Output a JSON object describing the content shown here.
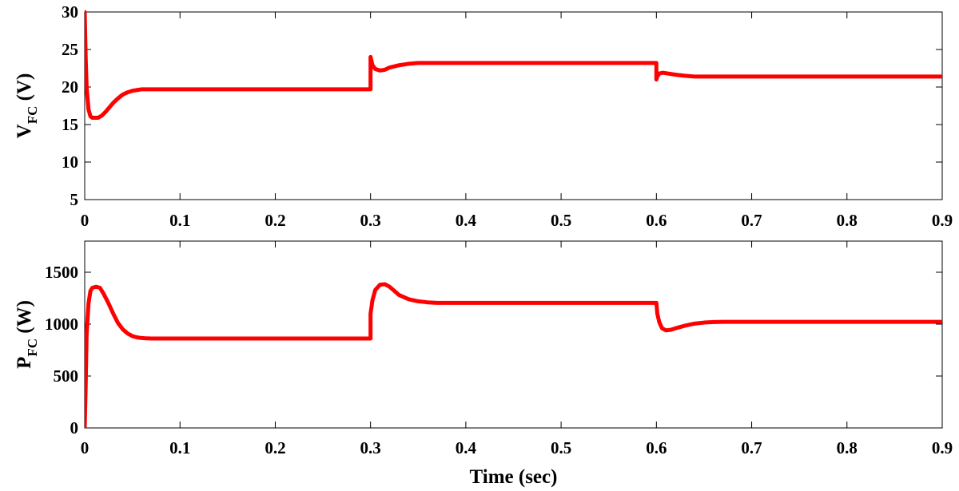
{
  "chart_data": [
    {
      "type": "line",
      "ylabel_main": "V",
      "ylabel_sub": "FC",
      "ylabel_unit": " (V)",
      "xlabel": "",
      "xlim": [
        0,
        0.9
      ],
      "ylim": [
        5,
        30
      ],
      "xticks": [
        0,
        0.1,
        0.2,
        0.3,
        0.4,
        0.5,
        0.6,
        0.7,
        0.8,
        0.9
      ],
      "xtick_labels": [
        "0",
        "0.1",
        "0.2",
        "0.3",
        "0.4",
        "0.5",
        "0.6",
        "0.7",
        "0.8",
        "0.9"
      ],
      "yticks": [
        5,
        10,
        15,
        20,
        25,
        30
      ],
      "ytick_labels": [
        "5",
        "10",
        "15",
        "20",
        "25",
        "30"
      ],
      "grid": false,
      "color": "#ff0000",
      "series": [
        {
          "x": [
            0,
            0.001,
            0.002,
            0.004,
            0.006,
            0.008,
            0.01,
            0.014,
            0.018,
            0.022,
            0.026,
            0.03,
            0.035,
            0.04,
            0.045,
            0.05,
            0.055,
            0.06,
            0.07,
            0.08,
            0.1,
            0.15,
            0.2,
            0.25,
            0.3,
            0.3,
            0.301,
            0.302,
            0.305,
            0.31,
            0.315,
            0.32,
            0.33,
            0.34,
            0.35,
            0.36,
            0.38,
            0.4,
            0.45,
            0.5,
            0.55,
            0.6,
            0.6,
            0.601,
            0.603,
            0.607,
            0.612,
            0.617,
            0.623,
            0.63,
            0.64,
            0.65,
            0.66,
            0.68,
            0.7,
            0.75,
            0.8,
            0.85,
            0.9
          ],
          "y": [
            30,
            24,
            20,
            17,
            16.1,
            15.9,
            15.9,
            15.9,
            16.2,
            16.7,
            17.3,
            17.9,
            18.5,
            19.0,
            19.3,
            19.5,
            19.6,
            19.7,
            19.7,
            19.7,
            19.7,
            19.7,
            19.7,
            19.7,
            19.7,
            24.0,
            23.5,
            22.9,
            22.4,
            22.2,
            22.3,
            22.6,
            22.9,
            23.1,
            23.2,
            23.2,
            23.2,
            23.2,
            23.2,
            23.2,
            23.2,
            23.2,
            21.0,
            21.4,
            21.8,
            21.9,
            21.8,
            21.7,
            21.6,
            21.5,
            21.4,
            21.4,
            21.4,
            21.4,
            21.4,
            21.4,
            21.4,
            21.4,
            21.4
          ]
        }
      ]
    },
    {
      "type": "line",
      "ylabel_main": "P",
      "ylabel_sub": "FC",
      "ylabel_unit": " (W)",
      "xlabel": "Time (sec)",
      "xlim": [
        0,
        0.9
      ],
      "ylim": [
        0,
        1800
      ],
      "xticks": [
        0,
        0.1,
        0.2,
        0.3,
        0.4,
        0.5,
        0.6,
        0.7,
        0.8,
        0.9
      ],
      "xtick_labels": [
        "0",
        "0.1",
        "0.2",
        "0.3",
        "0.4",
        "0.5",
        "0.6",
        "0.7",
        "0.8",
        "0.9"
      ],
      "yticks": [
        0,
        500,
        1000,
        1500
      ],
      "ytick_labels": [
        "0",
        "500",
        "1000",
        "1500"
      ],
      "grid": false,
      "color": "#ff0000",
      "series": [
        {
          "x": [
            0,
            0.001,
            0.002,
            0.004,
            0.006,
            0.008,
            0.012,
            0.016,
            0.02,
            0.025,
            0.03,
            0.035,
            0.04,
            0.045,
            0.05,
            0.055,
            0.06,
            0.065,
            0.07,
            0.08,
            0.1,
            0.15,
            0.2,
            0.25,
            0.3,
            0.3,
            0.302,
            0.305,
            0.31,
            0.315,
            0.32,
            0.325,
            0.33,
            0.34,
            0.35,
            0.36,
            0.37,
            0.38,
            0.4,
            0.45,
            0.5,
            0.55,
            0.6,
            0.601,
            0.603,
            0.606,
            0.61,
            0.615,
            0.62,
            0.63,
            0.64,
            0.65,
            0.66,
            0.67,
            0.7,
            0.75,
            0.8,
            0.85,
            0.9
          ],
          "y": [
            0,
            400,
            900,
            1200,
            1320,
            1350,
            1360,
            1350,
            1290,
            1200,
            1100,
            1010,
            950,
            910,
            885,
            872,
            866,
            863,
            862,
            862,
            862,
            862,
            862,
            862,
            862,
            1100,
            1230,
            1330,
            1380,
            1385,
            1360,
            1320,
            1280,
            1240,
            1220,
            1210,
            1205,
            1205,
            1205,
            1205,
            1205,
            1205,
            1205,
            1100,
            1020,
            960,
            940,
            945,
            960,
            985,
            1005,
            1015,
            1020,
            1022,
            1022,
            1022,
            1022,
            1022,
            1022
          ]
        }
      ]
    }
  ]
}
